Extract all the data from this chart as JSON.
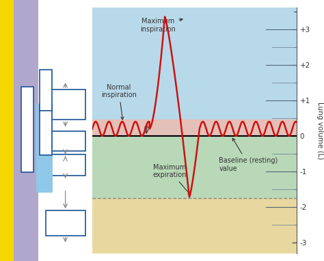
{
  "ylabel": "Lung volume (L)",
  "ylim": [
    -3.3,
    3.6
  ],
  "xlim": [
    0,
    10
  ],
  "yticks": [
    -3,
    -2,
    -1,
    0,
    1,
    2,
    3
  ],
  "ytick_labels": [
    "-3",
    "-2",
    "-1",
    "0",
    "+1",
    "+2",
    "+3"
  ],
  "bg_upper_color": "#b8d9ea",
  "bg_pink_color": "#f2b8a8",
  "bg_green_color": "#b8d8b8",
  "bg_tan_color": "#e8d8a0",
  "dashed_line_y": -1.75,
  "left_strip_yellow": "#f5d800",
  "left_strip_purple": "#b0a8cc",
  "left_strip_blue": "#90c8e8",
  "box_edge": "#1a5296",
  "wave_color": "#cc1111",
  "wave_linewidth": 1.8,
  "ann_color": "#333333",
  "ann_fontsize": 7,
  "arrow_color": "#555555"
}
